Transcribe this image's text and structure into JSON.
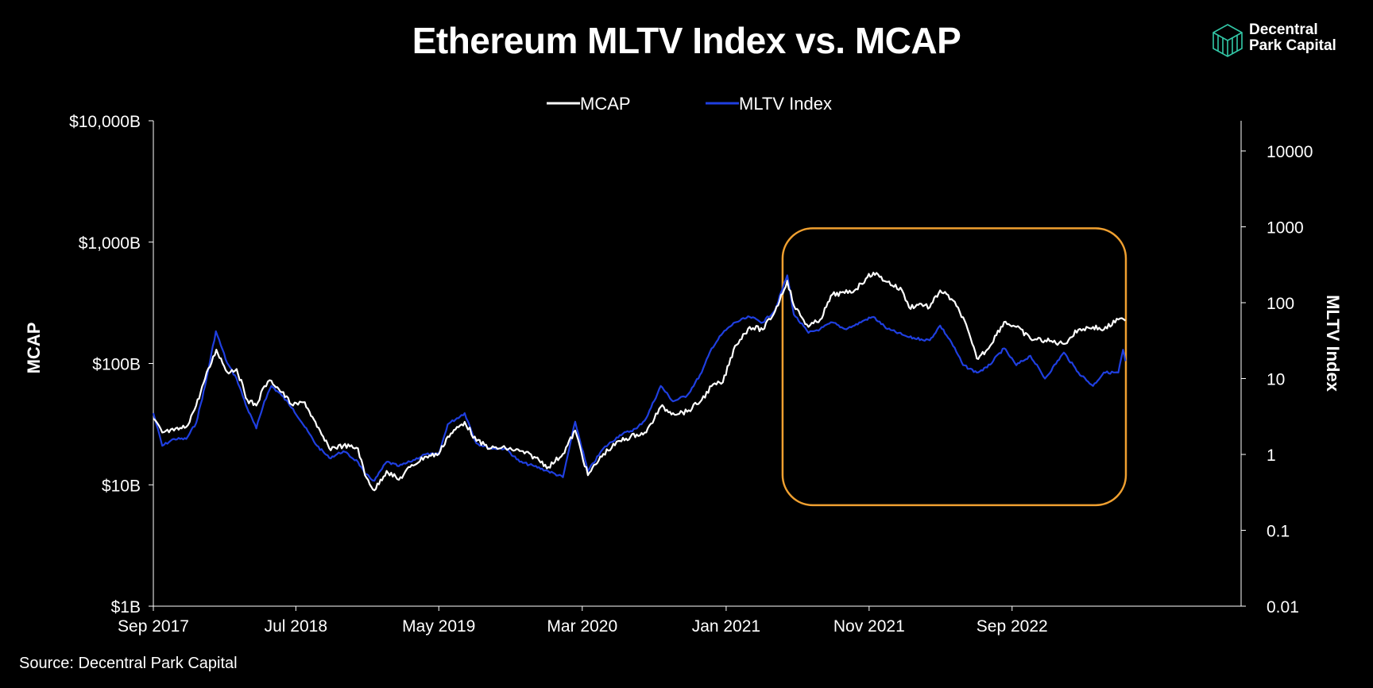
{
  "title": "Ethereum MLTV Index vs. MCAP",
  "logo": {
    "line1": "Decentral",
    "line2": "Park Capital",
    "icon": "cube-logo-icon"
  },
  "source": "Source: Decentral Park Capital",
  "colors": {
    "background": "#000000",
    "mcap": "#ffffff",
    "mltv": "#1f3fe0",
    "highlight": "#f0a030"
  },
  "chart_data": {
    "type": "line",
    "title": "Ethereum MLTV Index vs. MCAP",
    "ylabel_left": "MCAP",
    "ylabel_right": "MLTV Index",
    "y_left_scale": "log",
    "y_right_scale": "log",
    "ylim_left": [
      1,
      10000
    ],
    "ylim_right": [
      0.01,
      25000
    ],
    "y_left_ticks": [
      {
        "value": 1,
        "label": "$1B"
      },
      {
        "value": 10,
        "label": "$10B"
      },
      {
        "value": 100,
        "label": "$100B"
      },
      {
        "value": 1000,
        "label": "$1,000B"
      },
      {
        "value": 10000,
        "label": "$10,000B"
      }
    ],
    "y_right_ticks": [
      {
        "value": 0.01,
        "label": "0.01"
      },
      {
        "value": 0.1,
        "label": "0.1"
      },
      {
        "value": 1,
        "label": "1"
      },
      {
        "value": 10,
        "label": "10"
      },
      {
        "value": 100,
        "label": "100"
      },
      {
        "value": 1000,
        "label": "1000"
      },
      {
        "value": 10000,
        "label": "10000"
      }
    ],
    "xlim": [
      "2017-09-01",
      "2024-01-01"
    ],
    "x_ticks": [
      {
        "date": "2017-09-01",
        "label": "Sep 2017"
      },
      {
        "date": "2018-07-01",
        "label": "Jul 2018"
      },
      {
        "date": "2019-05-01",
        "label": "May 2019"
      },
      {
        "date": "2020-03-01",
        "label": "Mar 2020"
      },
      {
        "date": "2021-01-01",
        "label": "Jan 2021"
      },
      {
        "date": "2021-11-01",
        "label": "Nov 2021"
      },
      {
        "date": "2022-09-01",
        "label": "Sep 2022"
      }
    ],
    "legend": {
      "placement": "top-center",
      "entries": [
        "MCAP",
        "MLTV Index"
      ]
    },
    "grid": false,
    "highlight_box": {
      "x": [
        "2021-05-01",
        "2023-05-01"
      ],
      "y_left": [
        6.8,
        1300
      ]
    },
    "series": [
      {
        "name": "MCAP",
        "axis": "left",
        "color": "#ffffff",
        "points": [
          [
            "2017-09-01",
            35
          ],
          [
            "2017-09-20",
            27
          ],
          [
            "2017-10-15",
            28
          ],
          [
            "2017-11-10",
            30
          ],
          [
            "2017-12-01",
            45
          ],
          [
            "2017-12-20",
            75
          ],
          [
            "2018-01-13",
            130
          ],
          [
            "2018-02-05",
            85
          ],
          [
            "2018-02-25",
            90
          ],
          [
            "2018-03-20",
            50
          ],
          [
            "2018-04-08",
            45
          ],
          [
            "2018-04-25",
            65
          ],
          [
            "2018-05-10",
            72
          ],
          [
            "2018-06-01",
            58
          ],
          [
            "2018-06-25",
            45
          ],
          [
            "2018-07-20",
            48
          ],
          [
            "2018-08-15",
            30
          ],
          [
            "2018-09-10",
            20
          ],
          [
            "2018-10-10",
            21
          ],
          [
            "2018-11-10",
            20
          ],
          [
            "2018-11-25",
            12
          ],
          [
            "2018-12-15",
            9
          ],
          [
            "2019-01-10",
            13
          ],
          [
            "2019-02-05",
            11
          ],
          [
            "2019-03-01",
            14
          ],
          [
            "2019-04-01",
            17
          ],
          [
            "2019-05-01",
            18
          ],
          [
            "2019-05-20",
            25
          ],
          [
            "2019-06-25",
            33
          ],
          [
            "2019-07-20",
            23
          ],
          [
            "2019-08-20",
            20
          ],
          [
            "2019-09-20",
            20
          ],
          [
            "2019-10-20",
            19
          ],
          [
            "2019-11-20",
            17
          ],
          [
            "2019-12-20",
            14
          ],
          [
            "2020-01-20",
            18
          ],
          [
            "2020-02-15",
            28
          ],
          [
            "2020-03-13",
            12
          ],
          [
            "2020-04-15",
            18
          ],
          [
            "2020-05-20",
            23
          ],
          [
            "2020-06-25",
            26
          ],
          [
            "2020-07-15",
            27
          ],
          [
            "2020-08-15",
            44
          ],
          [
            "2020-09-10",
            39
          ],
          [
            "2020-10-10",
            40
          ],
          [
            "2020-11-10",
            50
          ],
          [
            "2020-12-01",
            65
          ],
          [
            "2020-12-25",
            70
          ],
          [
            "2021-01-20",
            140
          ],
          [
            "2021-02-20",
            200
          ],
          [
            "2021-03-20",
            190
          ],
          [
            "2021-04-15",
            270
          ],
          [
            "2021-05-11",
            480
          ],
          [
            "2021-05-25",
            300
          ],
          [
            "2021-06-25",
            200
          ],
          [
            "2021-07-20",
            230
          ],
          [
            "2021-08-15",
            370
          ],
          [
            "2021-09-10",
            380
          ],
          [
            "2021-10-01",
            400
          ],
          [
            "2021-10-25",
            500
          ],
          [
            "2021-11-10",
            560
          ],
          [
            "2021-12-10",
            470
          ],
          [
            "2022-01-10",
            400
          ],
          [
            "2022-01-25",
            290
          ],
          [
            "2022-02-20",
            310
          ],
          [
            "2022-03-10",
            290
          ],
          [
            "2022-04-01",
            400
          ],
          [
            "2022-04-25",
            340
          ],
          [
            "2022-05-20",
            240
          ],
          [
            "2022-06-18",
            110
          ],
          [
            "2022-07-10",
            130
          ],
          [
            "2022-08-15",
            220
          ],
          [
            "2022-09-10",
            200
          ],
          [
            "2022-10-10",
            160
          ],
          [
            "2022-11-10",
            155
          ],
          [
            "2022-12-20",
            145
          ],
          [
            "2023-01-20",
            190
          ],
          [
            "2023-02-20",
            200
          ],
          [
            "2023-03-15",
            190
          ],
          [
            "2023-04-15",
            230
          ],
          [
            "2023-04-30",
            225
          ]
        ]
      },
      {
        "name": "MLTV Index",
        "axis": "right",
        "color": "#1f3fe0",
        "points": [
          [
            "2017-09-01",
            3.5
          ],
          [
            "2017-09-20",
            1.3
          ],
          [
            "2017-10-15",
            1.6
          ],
          [
            "2017-11-10",
            1.6
          ],
          [
            "2017-12-01",
            2.6
          ],
          [
            "2017-12-20",
            8
          ],
          [
            "2018-01-12",
            42
          ],
          [
            "2018-02-05",
            16
          ],
          [
            "2018-02-25",
            10
          ],
          [
            "2018-03-20",
            4
          ],
          [
            "2018-04-08",
            2.2
          ],
          [
            "2018-04-25",
            5
          ],
          [
            "2018-05-10",
            8
          ],
          [
            "2018-06-01",
            6
          ],
          [
            "2018-06-25",
            4
          ],
          [
            "2018-07-20",
            2.3
          ],
          [
            "2018-08-15",
            1.3
          ],
          [
            "2018-09-10",
            0.9
          ],
          [
            "2018-10-10",
            1.1
          ],
          [
            "2018-11-10",
            0.8
          ],
          [
            "2018-11-25",
            0.55
          ],
          [
            "2018-12-15",
            0.45
          ],
          [
            "2019-01-10",
            0.8
          ],
          [
            "2019-02-05",
            0.7
          ],
          [
            "2019-03-01",
            0.8
          ],
          [
            "2019-04-01",
            1.0
          ],
          [
            "2019-05-01",
            1.0
          ],
          [
            "2019-05-20",
            2.5
          ],
          [
            "2019-06-25",
            3.5
          ],
          [
            "2019-07-20",
            1.4
          ],
          [
            "2019-08-20",
            1.2
          ],
          [
            "2019-09-20",
            1.2
          ],
          [
            "2019-10-20",
            0.8
          ],
          [
            "2019-11-20",
            0.7
          ],
          [
            "2019-12-20",
            0.6
          ],
          [
            "2020-01-20",
            0.5
          ],
          [
            "2020-02-15",
            2.7
          ],
          [
            "2020-03-13",
            0.6
          ],
          [
            "2020-04-15",
            1.2
          ],
          [
            "2020-05-20",
            1.8
          ],
          [
            "2020-06-25",
            2.2
          ],
          [
            "2020-07-15",
            3
          ],
          [
            "2020-08-15",
            8
          ],
          [
            "2020-09-10",
            5
          ],
          [
            "2020-10-10",
            6
          ],
          [
            "2020-11-10",
            12
          ],
          [
            "2020-12-01",
            25
          ],
          [
            "2020-12-25",
            40
          ],
          [
            "2021-01-20",
            55
          ],
          [
            "2021-02-20",
            65
          ],
          [
            "2021-03-20",
            55
          ],
          [
            "2021-04-15",
            80
          ],
          [
            "2021-05-11",
            230
          ],
          [
            "2021-05-25",
            70
          ],
          [
            "2021-06-25",
            40
          ],
          [
            "2021-07-20",
            45
          ],
          [
            "2021-08-15",
            55
          ],
          [
            "2021-09-10",
            45
          ],
          [
            "2021-10-01",
            50
          ],
          [
            "2021-10-25",
            60
          ],
          [
            "2021-11-10",
            65
          ],
          [
            "2021-12-10",
            45
          ],
          [
            "2022-01-10",
            38
          ],
          [
            "2022-01-25",
            35
          ],
          [
            "2022-02-20",
            33
          ],
          [
            "2022-03-10",
            32
          ],
          [
            "2022-04-01",
            50
          ],
          [
            "2022-04-25",
            30
          ],
          [
            "2022-05-20",
            15
          ],
          [
            "2022-06-18",
            12
          ],
          [
            "2022-07-10",
            14
          ],
          [
            "2022-08-15",
            25
          ],
          [
            "2022-09-10",
            15
          ],
          [
            "2022-10-10",
            20
          ],
          [
            "2022-11-10",
            10
          ],
          [
            "2022-12-20",
            22
          ],
          [
            "2023-01-20",
            12
          ],
          [
            "2023-02-20",
            8
          ],
          [
            "2023-03-15",
            12
          ],
          [
            "2023-04-15",
            12
          ],
          [
            "2023-04-25",
            24
          ],
          [
            "2023-04-30",
            17
          ]
        ]
      }
    ]
  }
}
